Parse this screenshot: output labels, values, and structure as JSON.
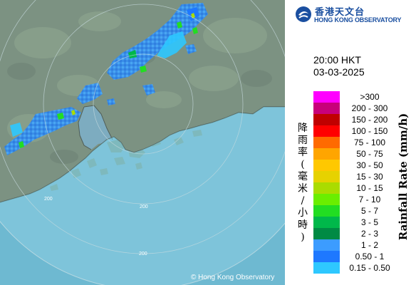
{
  "map": {
    "range_ring_labels": [
      "200",
      "200",
      "200"
    ],
    "copyright": "© Hong Kong Observatory"
  },
  "header": {
    "org_name_zh": "香港天文台",
    "org_name_en": "HONG KONG OBSERVATORY",
    "logo_icon": "hko-logo-icon",
    "brand_color": "#1a4fa0"
  },
  "timestamp": {
    "time": "20:00 HKT",
    "date": "03-03-2025"
  },
  "legend": {
    "title_zh": [
      "降",
      "雨",
      "率",
      "(",
      "毫",
      "米",
      "/",
      "小",
      "時",
      ")"
    ],
    "title_en": "Rainfall Rate (mm/h)",
    "items": [
      {
        "label": ">300",
        "color": "#ff00ff"
      },
      {
        "label": "200 - 300",
        "color": "#c8007a"
      },
      {
        "label": "150 - 200",
        "color": "#c00000"
      },
      {
        "label": "100 - 150",
        "color": "#ff0000"
      },
      {
        "label": "75 - 100",
        "color": "#ff6a00"
      },
      {
        "label": "50 - 75",
        "color": "#ffa500"
      },
      {
        "label": "30 - 50",
        "color": "#ffc800"
      },
      {
        "label": "15 - 30",
        "color": "#e6d200"
      },
      {
        "label": "10 - 15",
        "color": "#aadc00"
      },
      {
        "label": "7 - 10",
        "color": "#6aee00"
      },
      {
        "label": "5 - 7",
        "color": "#22dd22"
      },
      {
        "label": "3 - 5",
        "color": "#00b84a"
      },
      {
        "label": "2 - 3",
        "color": "#008a44"
      },
      {
        "label": "1 - 2",
        "color": "#3c9cff"
      },
      {
        "label": "0.50 - 1",
        "color": "#1e78ff"
      },
      {
        "label": "0.15 - 0.50",
        "color": "#2ec8ff"
      }
    ]
  }
}
